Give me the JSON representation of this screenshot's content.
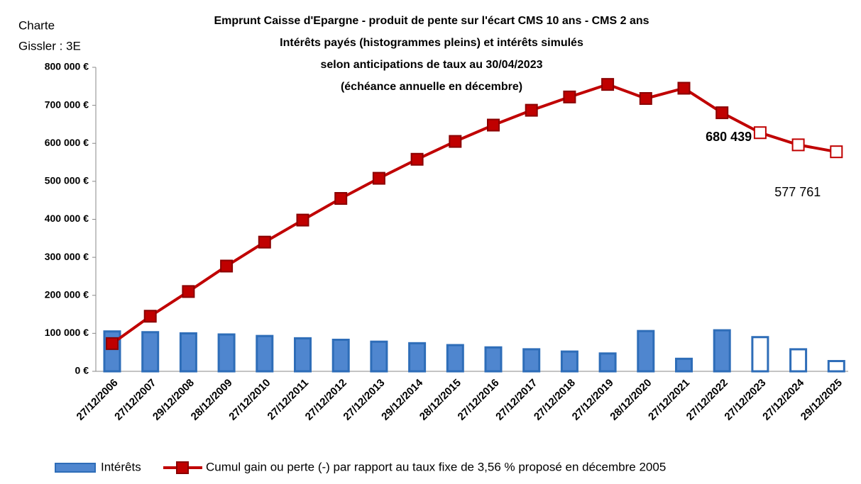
{
  "chart_data": {
    "type": "bar-line",
    "title": [
      "Emprunt Caisse d'Epargne - produit de pente sur l'écart CMS 10 ans - CMS 2 ans",
      "Intérêts payés (histogrammes pleins) et intérêts simulés",
      "selon anticipations de taux au 30/04/2023",
      "(échéance annuelle en décembre)"
    ],
    "annotation": [
      "Charte",
      "Gissler : 3E"
    ],
    "categories": [
      "27/12/2006",
      "27/12/2007",
      "29/12/2008",
      "28/12/2009",
      "27/12/2010",
      "27/12/2011",
      "27/12/2012",
      "27/12/2013",
      "29/12/2014",
      "28/12/2015",
      "27/12/2016",
      "27/12/2017",
      "27/12/2018",
      "27/12/2019",
      "28/12/2020",
      "27/12/2021",
      "27/12/2022",
      "27/12/2023",
      "27/12/2024",
      "29/12/2025"
    ],
    "series": [
      {
        "name": "Intérêts",
        "type": "bar",
        "color": "#4f86cf",
        "stroke": "#2e6db8",
        "values": [
          105000,
          103000,
          100000,
          97000,
          93000,
          87000,
          83000,
          78000,
          74000,
          69000,
          63000,
          58000,
          52000,
          47000,
          106000,
          33000,
          108000,
          90000,
          58000,
          27000
        ],
        "hollow": [
          false,
          false,
          false,
          false,
          false,
          false,
          false,
          false,
          false,
          false,
          false,
          false,
          false,
          false,
          false,
          false,
          false,
          true,
          true,
          true
        ]
      },
      {
        "name": "Cumul gain ou perte (-) par rapport au taux fixe de 3,56 % proposé en décembre 2005",
        "type": "line",
        "color": "#c00000",
        "values": [
          73000,
          145000,
          210000,
          277000,
          340000,
          398000,
          455000,
          508000,
          558000,
          605000,
          648000,
          687000,
          722000,
          755000,
          718000,
          745000,
          680439,
          628000,
          596000,
          577761
        ],
        "value_labels": [
          null,
          null,
          null,
          null,
          null,
          null,
          null,
          null,
          null,
          null,
          null,
          null,
          null,
          null,
          null,
          null,
          "680 439",
          null,
          null,
          "577 761"
        ],
        "hollow": [
          false,
          false,
          false,
          false,
          false,
          false,
          false,
          false,
          false,
          false,
          false,
          false,
          false,
          false,
          false,
          false,
          false,
          true,
          true,
          true
        ]
      }
    ],
    "ylim": [
      0,
      800000
    ],
    "yticks": [
      {
        "value": 0,
        "label": "0 €"
      },
      {
        "value": 100000,
        "label": "100 000 €"
      },
      {
        "value": 200000,
        "label": "200 000 €"
      },
      {
        "value": 300000,
        "label": "300 000 €"
      },
      {
        "value": 400000,
        "label": "400 000 €"
      },
      {
        "value": 500000,
        "label": "500 000 €"
      },
      {
        "value": 600000,
        "label": "600 000 €"
      },
      {
        "value": 700000,
        "label": "700 000 €"
      },
      {
        "value": 800000,
        "label": "800 000 €"
      }
    ],
    "grid": false,
    "legend": "bottom"
  }
}
